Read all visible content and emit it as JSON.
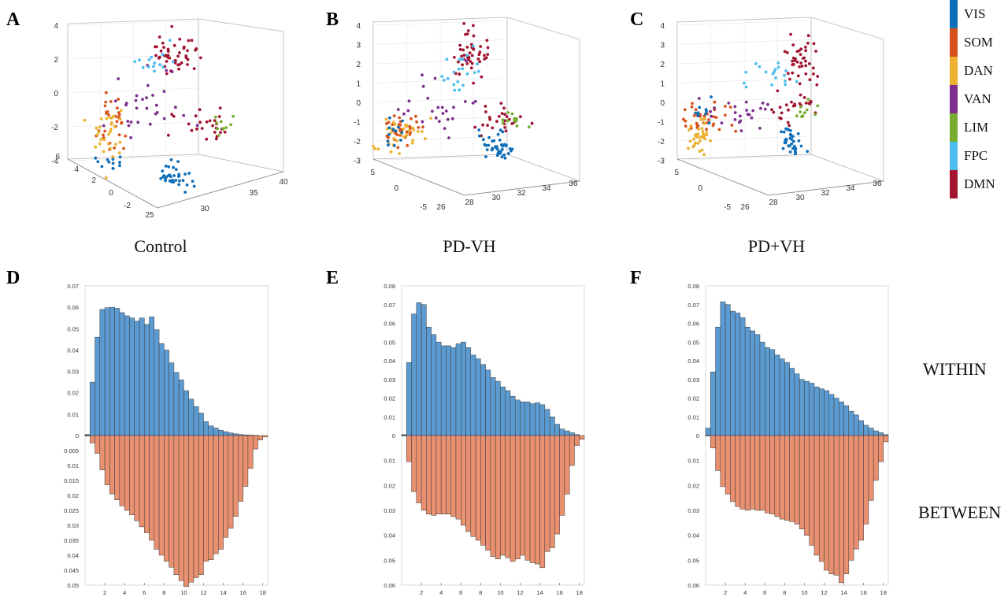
{
  "panels": {
    "letters": [
      "A",
      "B",
      "C",
      "D",
      "E",
      "F"
    ],
    "groups": [
      "Control",
      "PD-VH",
      "PD+VH"
    ],
    "row_labels": {
      "within": "WITHIN",
      "between": "BETWEEN"
    }
  },
  "legend": [
    {
      "name": "VIS",
      "color": "#0d6eb8"
    },
    {
      "name": "SOM",
      "color": "#d9521b"
    },
    {
      "name": "DAN",
      "color": "#ecb12f"
    },
    {
      "name": "VAN",
      "color": "#7e2e8e"
    },
    {
      "name": "LIM",
      "color": "#77ac30"
    },
    {
      "name": "FPC",
      "color": "#4dbdee"
    },
    {
      "name": "DMN",
      "color": "#a2142f"
    }
  ],
  "chart_data": [
    {
      "panel": "A",
      "type": "scatter",
      "z_ticks": [
        "4",
        "2",
        "0",
        "-2",
        "-4"
      ],
      "x_ticks": [
        "25",
        "30",
        "35",
        "40"
      ],
      "y_ticks": [
        "6",
        "4",
        "2",
        "0",
        "-2"
      ],
      "zlim": [
        -4,
        4
      ],
      "xlim": [
        25,
        40
      ],
      "ylim": [
        -2,
        6
      ]
    },
    {
      "panel": "B",
      "type": "scatter",
      "z_ticks": [
        "4",
        "3",
        "2",
        "1",
        "0",
        "-1",
        "-2",
        "-3"
      ],
      "x_ticks": [
        "26",
        "28",
        "30",
        "32",
        "34",
        "36"
      ],
      "y_ticks": [
        "5",
        "0",
        "-5"
      ],
      "zlim": [
        -3,
        4
      ],
      "xlim": [
        26,
        36
      ],
      "ylim": [
        -5,
        5
      ]
    },
    {
      "panel": "C",
      "type": "scatter",
      "z_ticks": [
        "4",
        "3",
        "2",
        "1",
        "0",
        "-1",
        "-2",
        "-3"
      ],
      "x_ticks": [
        "26",
        "28",
        "30",
        "32",
        "34",
        "36"
      ],
      "y_ticks": [
        "5",
        "0",
        "-5"
      ],
      "zlim": [
        -3,
        4
      ],
      "xlim": [
        26,
        36
      ],
      "ylim": [
        -5,
        5
      ]
    },
    {
      "panel": "D",
      "type": "bar",
      "group": "Control",
      "x_ticks": [
        "2",
        "4",
        "6",
        "8",
        "10",
        "12",
        "14",
        "16",
        "18"
      ],
      "y_top_ticks": [
        "0.07",
        "0.06",
        "0.05",
        "0.04",
        "0.03",
        "0.02",
        "0.01",
        "0"
      ],
      "y_bottom_ticks": [
        "0.005",
        "0.01",
        "0.015",
        "0.02",
        "0.025",
        "0.03",
        "0.035",
        "0.04",
        "0.045",
        "0.05"
      ],
      "ylim_top": 0.07,
      "ylim_bottom": 0.05,
      "xlim": [
        0,
        18.5
      ],
      "bin_width": 0.5,
      "within": [
        0.0005,
        0.025,
        0.046,
        0.059,
        0.0598,
        0.06,
        0.0595,
        0.0575,
        0.056,
        0.055,
        0.0535,
        0.055,
        0.052,
        0.0555,
        0.0495,
        0.043,
        0.04,
        0.034,
        0.0295,
        0.026,
        0.021,
        0.017,
        0.0135,
        0.0105,
        0.0065,
        0.0045,
        0.0035,
        0.0025,
        0.0018,
        0.0012,
        0.0008,
        0.0005,
        0.0003,
        0.0002,
        0.0001
      ],
      "between": [
        0.0002,
        0.0025,
        0.006,
        0.0115,
        0.0165,
        0.0195,
        0.0215,
        0.0235,
        0.025,
        0.0265,
        0.0285,
        0.0305,
        0.0325,
        0.035,
        0.038,
        0.04,
        0.042,
        0.044,
        0.0465,
        0.0485,
        0.0505,
        0.049,
        0.0475,
        0.0465,
        0.042,
        0.0415,
        0.0395,
        0.038,
        0.034,
        0.031,
        0.027,
        0.022,
        0.017,
        0.011,
        0.0045,
        0.0015,
        0.0005
      ]
    },
    {
      "panel": "E",
      "type": "bar",
      "group": "PD-VH",
      "x_ticks": [
        "2",
        "4",
        "6",
        "8",
        "10",
        "12",
        "14",
        "16",
        "18"
      ],
      "y_top_ticks": [
        "0.08",
        "0.07",
        "0.06",
        "0.05",
        "0.04",
        "0.03",
        "0.02",
        "0.01",
        "0"
      ],
      "y_bottom_ticks": [
        "0.01",
        "0.02",
        "0.03",
        "0.04",
        "0.05",
        "0.06"
      ],
      "ylim_top": 0.08,
      "ylim_bottom": 0.06,
      "xlim": [
        0,
        18.5
      ],
      "bin_width": 0.5,
      "within": [
        0.0005,
        0.039,
        0.065,
        0.071,
        0.07,
        0.058,
        0.054,
        0.05,
        0.048,
        0.048,
        0.047,
        0.049,
        0.05,
        0.047,
        0.043,
        0.041,
        0.038,
        0.035,
        0.031,
        0.029,
        0.026,
        0.024,
        0.021,
        0.019,
        0.018,
        0.018,
        0.017,
        0.0175,
        0.0165,
        0.014,
        0.01,
        0.006,
        0.0035,
        0.0025,
        0.0015,
        0.0005
      ],
      "between": [
        0.0002,
        0.0105,
        0.0225,
        0.027,
        0.03,
        0.0315,
        0.032,
        0.0315,
        0.0315,
        0.0315,
        0.0325,
        0.0335,
        0.036,
        0.0385,
        0.0405,
        0.042,
        0.044,
        0.046,
        0.0485,
        0.0495,
        0.048,
        0.049,
        0.0505,
        0.0495,
        0.048,
        0.05,
        0.051,
        0.0515,
        0.053,
        0.0465,
        0.045,
        0.0395,
        0.032,
        0.0235,
        0.012,
        0.004,
        0.0015
      ]
    },
    {
      "panel": "F",
      "type": "bar",
      "group": "PD+VH",
      "x_ticks": [
        "2",
        "4",
        "6",
        "8",
        "10",
        "12",
        "14",
        "16",
        "18"
      ],
      "y_top_ticks": [
        "0.08",
        "0.07",
        "0.06",
        "0.05",
        "0.04",
        "0.03",
        "0.02",
        "0.01",
        "0"
      ],
      "y_bottom_ticks": [
        "0.01",
        "0.02",
        "0.03",
        "0.04",
        "0.05",
        "0.06"
      ],
      "ylim_top": 0.08,
      "ylim_bottom": 0.06,
      "xlim": [
        0,
        18.5
      ],
      "bin_width": 0.5,
      "within": [
        0.004,
        0.034,
        0.058,
        0.0715,
        0.07,
        0.0665,
        0.0655,
        0.063,
        0.058,
        0.056,
        0.054,
        0.05,
        0.047,
        0.046,
        0.043,
        0.041,
        0.039,
        0.036,
        0.033,
        0.03,
        0.029,
        0.028,
        0.026,
        0.025,
        0.024,
        0.022,
        0.02,
        0.018,
        0.016,
        0.013,
        0.011,
        0.008,
        0.0055,
        0.004,
        0.0025,
        0.0015,
        0.0005
      ],
      "between": [
        0.0002,
        0.005,
        0.014,
        0.0205,
        0.0235,
        0.0265,
        0.0285,
        0.0295,
        0.03,
        0.0295,
        0.03,
        0.03,
        0.031,
        0.0315,
        0.0325,
        0.0335,
        0.034,
        0.0345,
        0.0355,
        0.0375,
        0.04,
        0.044,
        0.048,
        0.0505,
        0.054,
        0.0555,
        0.056,
        0.059,
        0.0555,
        0.05,
        0.0455,
        0.042,
        0.0355,
        0.026,
        0.018,
        0.0105,
        0.0025
      ]
    }
  ]
}
